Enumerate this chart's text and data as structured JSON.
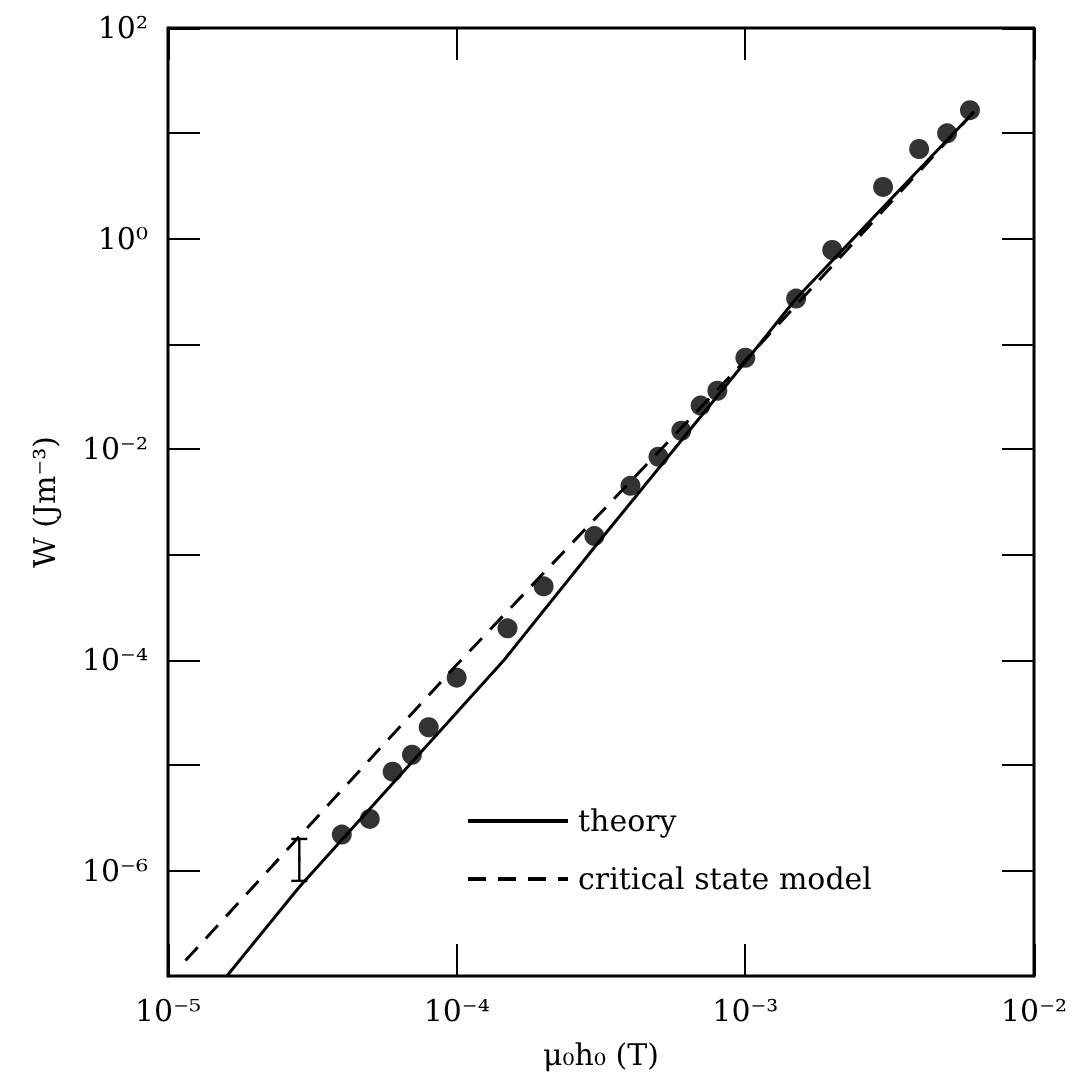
{
  "chart_data": {
    "type": "line",
    "xlabel": "μ₀h₀ (T)",
    "ylabel": "W (Jm⁻³)",
    "log": "xy",
    "grid": false,
    "legend": "bottom right",
    "xlim": [
      1e-05,
      0.01
    ],
    "ylim": [
      1e-07,
      100
    ],
    "xticks": [
      {
        "value": 1e-05,
        "label": "10⁻⁵"
      },
      {
        "value": 0.0001,
        "label": "10⁻⁴"
      },
      {
        "value": 0.001,
        "label": "10⁻³"
      },
      {
        "value": 0.01,
        "label": "10⁻²"
      }
    ],
    "yticks": [
      {
        "value": 1e-06,
        "label": "10⁻⁶"
      },
      {
        "value": 1e-05,
        "label": null
      },
      {
        "value": 0.0001,
        "label": "10⁻⁴"
      },
      {
        "value": 0.001,
        "label": null
      },
      {
        "value": 0.01,
        "label": "10⁻²"
      },
      {
        "value": 0.1,
        "label": null
      },
      {
        "value": 1,
        "label": "10⁰"
      },
      {
        "value": 10,
        "label": null
      },
      {
        "value": 100,
        "label": "10²"
      }
    ],
    "series": [
      {
        "name": "theory",
        "color": "#000000",
        "line_style": "solid",
        "marker": "none",
        "x": [
          1.6e-05,
          2.85e-05,
          0.000146,
          0.000316,
          0.00105,
          0.0015,
          0.0062
        ],
        "values": [
          1e-07,
          7e-07,
          0.0001,
          0.0014,
          0.08,
          0.27,
          16
        ]
      },
      {
        "name": "critical state model",
        "color": "#000000",
        "line_style": "dashed",
        "marker": "none",
        "x": [
          1.15e-05,
          0.0001,
          0.001,
          0.0062
        ],
        "values": [
          1.4e-07,
          9e-05,
          0.07,
          16
        ]
      },
      {
        "type": "scatter",
        "color": "#000000",
        "marker": "circle",
        "x": [
          4e-05,
          5e-05,
          6e-05,
          7e-05,
          8e-05,
          0.0001,
          0.00015,
          0.0002,
          0.0003,
          0.0004,
          0.0005,
          0.0006,
          0.0007,
          0.0008,
          0.001,
          0.0015,
          0.002,
          0.003,
          0.004,
          0.005,
          0.006
        ],
        "values": [
          2.2e-06,
          3.1e-06,
          8.7e-06,
          1.26e-05,
          2.3e-05,
          6.8e-05,
          0.0002,
          0.0005,
          0.0015,
          0.0045,
          0.0085,
          0.015,
          0.026,
          0.036,
          0.074,
          0.27,
          0.78,
          3.1,
          7.1,
          10,
          16.6
        ]
      },
      {
        "type": "scatter",
        "color": "#000000",
        "x": [
          2.85e-05
        ],
        "values": [
          1.3e-06
        ],
        "errors": [
          [
            8e-07,
            2e-06
          ]
        ]
      }
    ]
  }
}
